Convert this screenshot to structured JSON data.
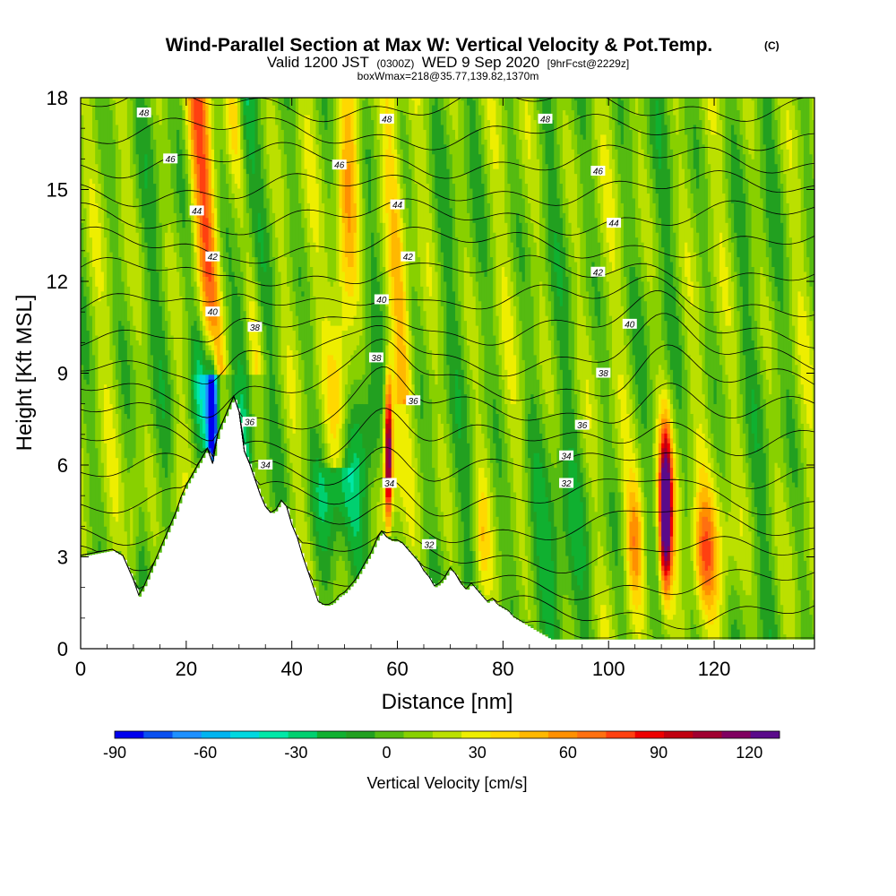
{
  "title": {
    "main": "Wind-Parallel Section at Max W: Vertical Velocity & Pot.Temp.",
    "main_mark": "(C)",
    "valid_prefix": "Valid 1200 JST",
    "valid_utc": "(0300Z)",
    "valid_date": "WED 9 Sep 2020",
    "valid_fcst": "[9hrFcst@2229z]",
    "box_line": "boxWmax=218@35.77,139.82,1370m"
  },
  "chart_data": {
    "type": "heatmap",
    "xlabel": "Distance [nm]",
    "ylabel": "Height [Kft MSL]",
    "xlim": [
      0,
      139
    ],
    "ylim": [
      0,
      18
    ],
    "xticks": [
      "0",
      "20",
      "40",
      "60",
      "80",
      "100",
      "120"
    ],
    "yticks": [
      "0",
      "3",
      "6",
      "9",
      "12",
      "15",
      "18"
    ],
    "colorbar": {
      "label": "Vertical Velocity [cm/s]",
      "ticks": [
        "-90",
        "-60",
        "-30",
        "0",
        "30",
        "60",
        "90",
        "120"
      ],
      "levels": [
        -90,
        -80,
        -70,
        -60,
        -50,
        -40,
        -30,
        -20,
        -10,
        0,
        10,
        20,
        30,
        40,
        50,
        60,
        70,
        80,
        90,
        100,
        110,
        120,
        130
      ],
      "colors": [
        "#0000ee",
        "#0a50f0",
        "#1e90ff",
        "#00b4f0",
        "#00d8e0",
        "#00e8a8",
        "#00d070",
        "#10b030",
        "#22a020",
        "#55bb11",
        "#88d000",
        "#bbe000",
        "#eeee00",
        "#ffd800",
        "#ffb800",
        "#ff9000",
        "#ff7010",
        "#ff4010",
        "#ee0000",
        "#c00010",
        "#a00030",
        "#800060",
        "#5a0a8a"
      ]
    },
    "theta_contour_labels": [
      "48",
      "46",
      "44",
      "42",
      "40",
      "38",
      "36",
      "34",
      "32"
    ],
    "terrain_kft": {
      "x": [
        0,
        6,
        8,
        9,
        10,
        11,
        12,
        13,
        14,
        15,
        16,
        17,
        18,
        19,
        20,
        21,
        22,
        23,
        24,
        25,
        26,
        27,
        28,
        29,
        30,
        31,
        32,
        33,
        34,
        35,
        36,
        37,
        38,
        39,
        40,
        41,
        42,
        43,
        44,
        45,
        46,
        47,
        48,
        49,
        50,
        51,
        52,
        53,
        54,
        55,
        56,
        57,
        58,
        59,
        60,
        61,
        62,
        63,
        64,
        65,
        66,
        67,
        68,
        69,
        70,
        71,
        72,
        73,
        74,
        75,
        76,
        77,
        78,
        79,
        80,
        81,
        82,
        83,
        84,
        85,
        86,
        87,
        88,
        89,
        90,
        139
      ],
      "y": [
        3.0,
        3.2,
        3.0,
        2.6,
        2.2,
        1.7,
        2.0,
        2.4,
        2.8,
        3.2,
        3.6,
        4.0,
        4.4,
        4.9,
        5.3,
        5.6,
        5.9,
        6.2,
        6.5,
        6.0,
        7.0,
        7.4,
        7.8,
        8.2,
        7.7,
        6.4,
        6.0,
        5.5,
        5.0,
        4.6,
        4.4,
        4.5,
        4.8,
        4.6,
        4.0,
        3.6,
        3.0,
        2.5,
        2.0,
        1.5,
        1.4,
        1.4,
        1.5,
        1.7,
        1.8,
        2.0,
        2.2,
        2.5,
        2.8,
        3.1,
        3.5,
        3.8,
        3.6,
        3.5,
        3.5,
        3.4,
        3.2,
        3.0,
        2.8,
        2.5,
        2.3,
        2.0,
        2.1,
        2.3,
        2.6,
        2.4,
        2.1,
        1.9,
        2.1,
        1.9,
        1.7,
        1.5,
        1.6,
        1.4,
        1.3,
        1.2,
        1.0,
        0.9,
        0.8,
        0.7,
        0.6,
        0.5,
        0.4,
        0.3,
        0.3,
        0.3
      ]
    }
  }
}
